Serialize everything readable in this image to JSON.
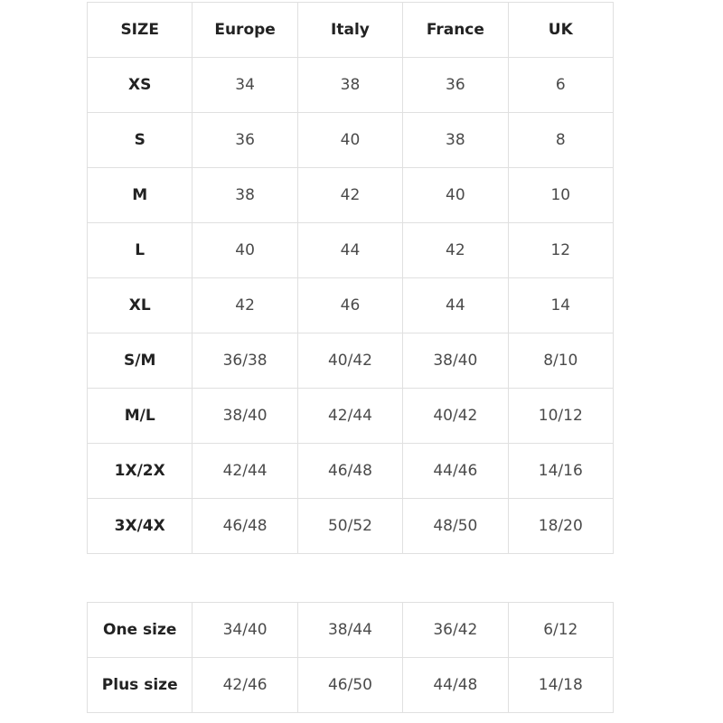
{
  "size_table": {
    "headers": [
      "SIZE",
      "Europe",
      "Italy",
      "France",
      "UK"
    ],
    "rows": [
      [
        "XS",
        "34",
        "38",
        "36",
        "6"
      ],
      [
        "S",
        "36",
        "40",
        "38",
        "8"
      ],
      [
        "M",
        "38",
        "42",
        "40",
        "10"
      ],
      [
        "L",
        "40",
        "44",
        "42",
        "12"
      ],
      [
        "XL",
        "42",
        "46",
        "44",
        "14"
      ],
      [
        "S/M",
        "36/38",
        "40/42",
        "38/40",
        "8/10"
      ],
      [
        "M/L",
        "38/40",
        "42/44",
        "40/42",
        "10/12"
      ],
      [
        "1X/2X",
        "42/44",
        "46/48",
        "44/46",
        "14/16"
      ],
      [
        "3X/4X",
        "46/48",
        "50/52",
        "48/50",
        "18/20"
      ]
    ]
  },
  "special_table": {
    "rows": [
      [
        "One size",
        "34/40",
        "38/44",
        "36/42",
        "6/12"
      ],
      [
        "Plus size",
        "42/46",
        "46/50",
        "44/48",
        "14/18"
      ]
    ]
  }
}
